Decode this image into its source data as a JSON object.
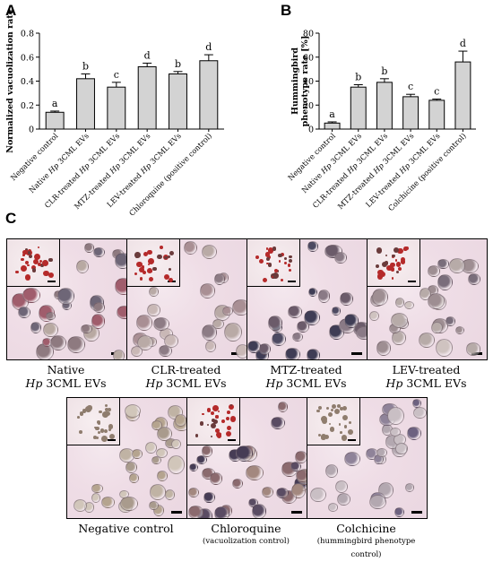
{
  "panels": {
    "a": "A",
    "b": "B",
    "c": "C"
  },
  "chart_data": [
    {
      "type": "bar",
      "ylabel": "Normalized vacuolization rate",
      "ylim": [
        0,
        0.8
      ],
      "yticks": [
        "0",
        "0.2",
        "0.4",
        "0.6",
        "0.8"
      ],
      "categories": [
        "Negative control",
        "Native Hp 3CML EVs",
        "CLR-treated Hp 3CML EVs",
        "MTZ-treated Hp 3CML EVs",
        "LEV-treated Hp 3CML EVs",
        "Chloroquine (positive control)"
      ],
      "values": [
        0.14,
        0.42,
        0.35,
        0.52,
        0.46,
        0.57
      ],
      "errors": [
        0.01,
        0.04,
        0.04,
        0.03,
        0.02,
        0.05
      ],
      "labels": [
        "a",
        "b",
        "c",
        "d",
        "b",
        "d"
      ],
      "bar_color": "#d3d3d3"
    },
    {
      "type": "bar",
      "ylabel": "Hummingbird phenotype rate [%]",
      "ylim": [
        0,
        80
      ],
      "yticks": [
        "0",
        "20",
        "40",
        "60",
        "80"
      ],
      "categories": [
        "Negative control",
        "Native Hp 3CML EVs",
        "CLR-treated Hp 3CML EVs",
        "MTZ-treated Hp 3CML EVs",
        "LEV-treated Hp 3CML EVs",
        "Colchicine (positive control)"
      ],
      "values": [
        5,
        35,
        39,
        27,
        24,
        56
      ],
      "errors": [
        1,
        2,
        3,
        2,
        1,
        9
      ],
      "labels": [
        "a",
        "b",
        "b",
        "c",
        "c",
        "d"
      ],
      "bar_color": "#d3d3d3"
    }
  ],
  "images": {
    "row1": [
      {
        "line1": "Native",
        "hp": "Hp",
        "line2": " 3CML EVs"
      },
      {
        "line1": "CLR-treated",
        "hp": "Hp",
        "line2": " 3CML EVs"
      },
      {
        "line1": "MTZ-treated",
        "hp": "Hp",
        "line2": " 3CML EVs"
      },
      {
        "line1": "LEV-treated",
        "hp": "Hp",
        "line2": " 3CML EVs"
      }
    ],
    "row2": [
      {
        "line1": "Negative control",
        "sub": ""
      },
      {
        "line1": "Chloroquine",
        "sub": "(vacuolization control)"
      },
      {
        "line1": "Colchicine",
        "sub": "(hummingbird phenotype control)"
      }
    ]
  }
}
